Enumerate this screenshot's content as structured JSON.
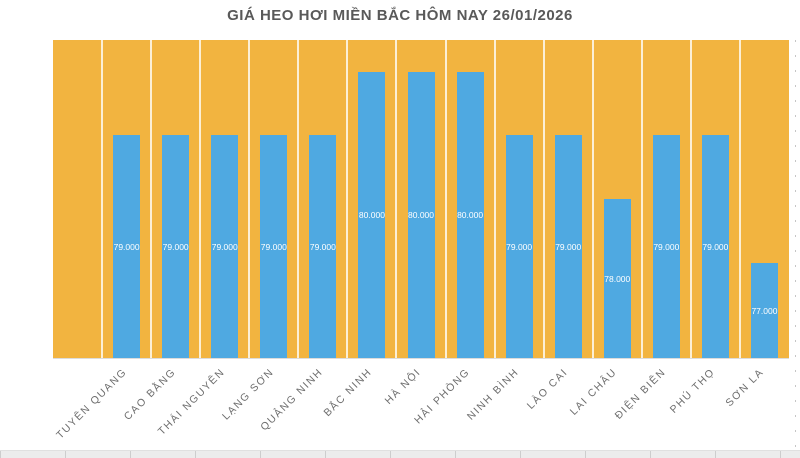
{
  "chart_data": {
    "type": "bar",
    "title": "GIÁ HEO HƠI MIỀN BẮC HÔM NAY 26/01/2026",
    "categories": [
      "TUYÊN QUANG",
      "CAO BẰNG",
      "THÁI NGUYÊN",
      "LẠNG SƠN",
      "QUẢNG NINH",
      "BẮC NINH",
      "HÀ NỘI",
      "HẢI PHÒNG",
      "NINH BÌNH",
      "LÀO CAI",
      "LAI CHÂU",
      "ĐIỆN BIÊN",
      "PHÚ THỌ",
      "SƠN LA"
    ],
    "values": [
      79000,
      79000,
      79000,
      79000,
      79000,
      80000,
      80000,
      80000,
      79000,
      79000,
      78000,
      79000,
      79000,
      77000
    ],
    "data_labels": [
      "79.000",
      "79.000",
      "79.000",
      "79.000",
      "79.000",
      "80.000",
      "80.000",
      "80.000",
      "79.000",
      "79.000",
      "78.000",
      "79.000",
      "79.000",
      "77.000"
    ],
    "xlabel": "",
    "ylabel": "",
    "ylim": [
      75500,
      80500
    ],
    "legend": "none",
    "grid": "vertical-category-gridlines",
    "leading_empty_columns": 1,
    "colors": {
      "plot_background": "#F2B440",
      "bar_fill": "#4FA9E1",
      "data_label_text": "#FFFFFF",
      "title_text": "#595959",
      "axis_label_text": "#6E6E6E",
      "gridline": "rgba(255,255,255,0.78)"
    }
  }
}
